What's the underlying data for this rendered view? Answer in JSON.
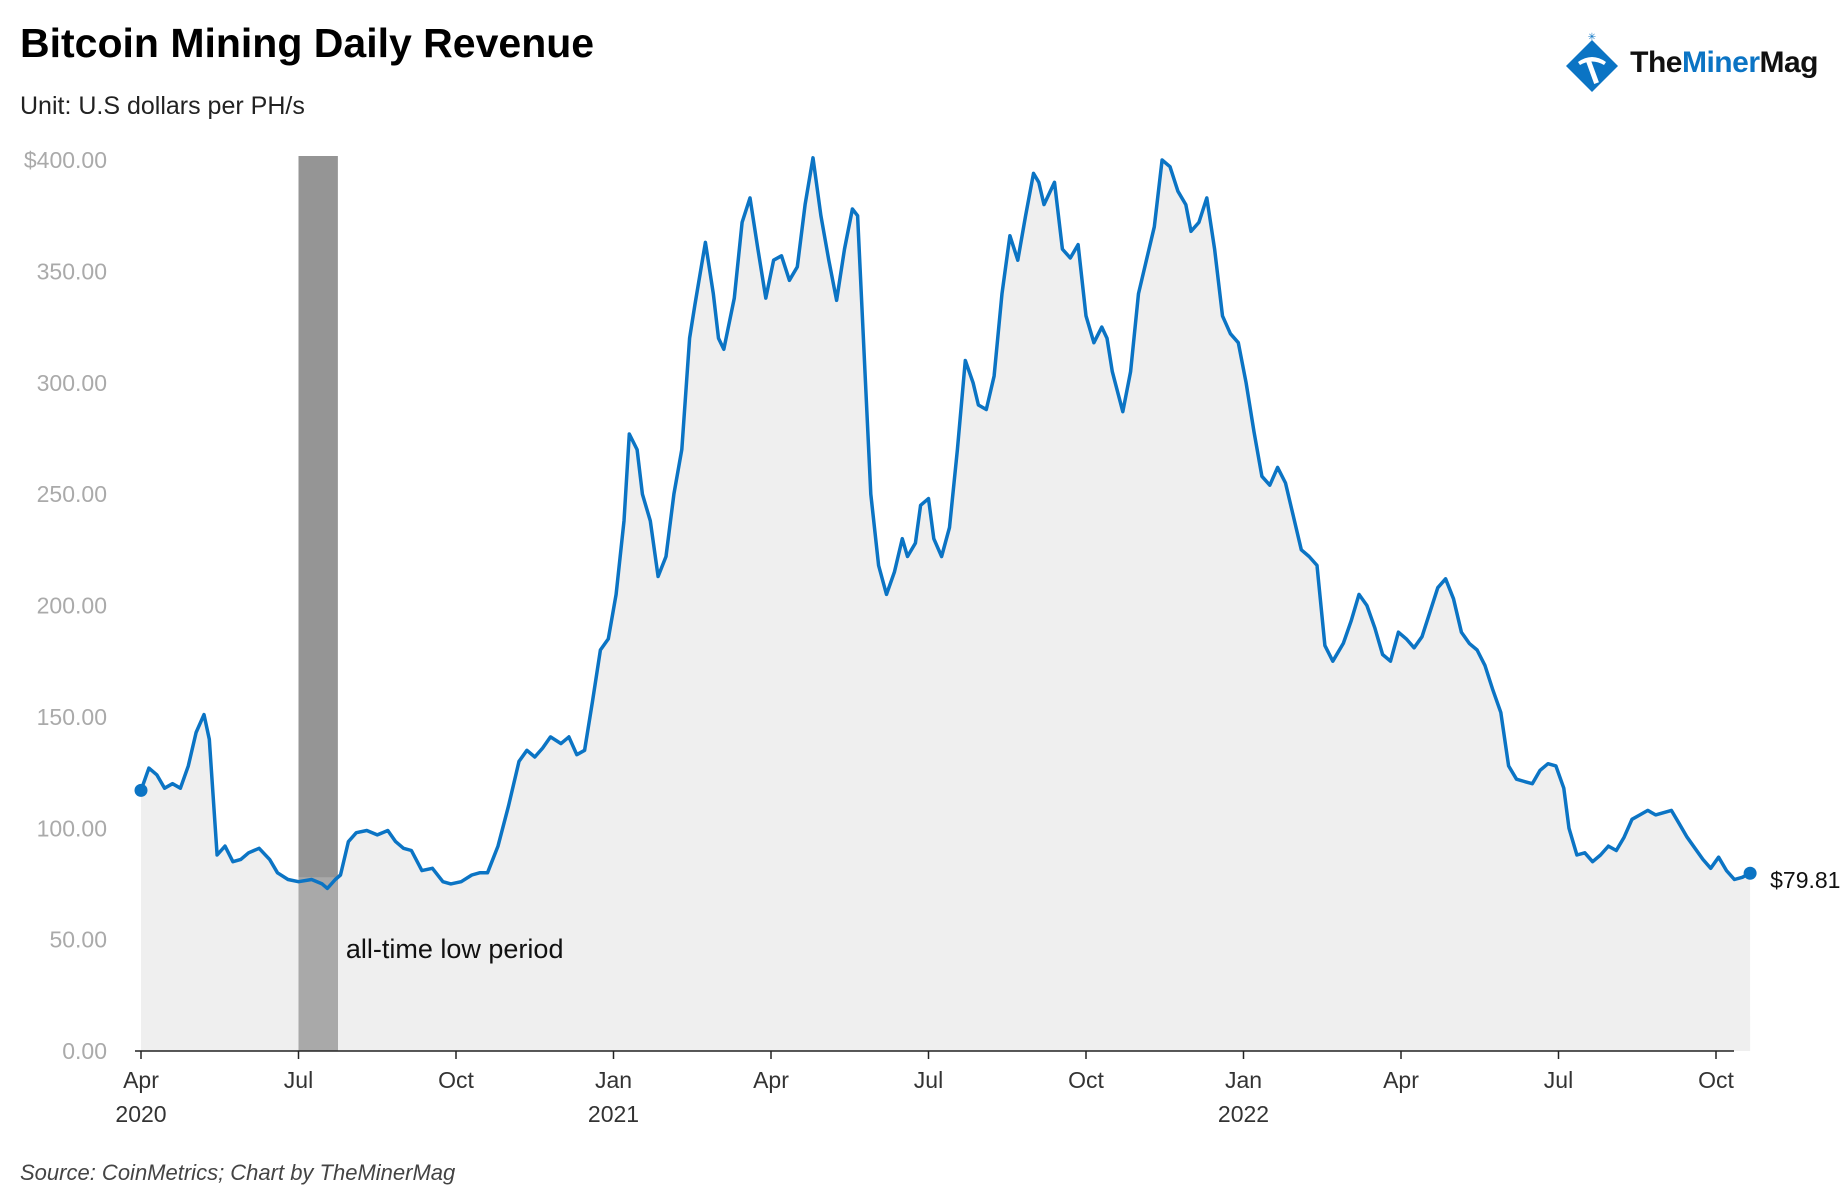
{
  "header": {
    "title": "Bitcoin Mining Daily Revenue",
    "subtitle": "Unit: U.S dollars per PH/s"
  },
  "logo": {
    "text_part1": "The",
    "text_part2": "Miner",
    "text_part3": "Mag"
  },
  "footer": {
    "source": "Source: CoinMetrics; Chart by TheMinerMag"
  },
  "colors": {
    "line": "#0b74c4",
    "area": "#efefef",
    "shade_dark": "#959595",
    "shade_light": "#a9a9a9"
  },
  "chart_data": {
    "type": "area",
    "title": "Bitcoin Mining Daily Revenue",
    "ylabel": "Unit: U.S dollars per PH/s",
    "ylim": [
      0,
      400
    ],
    "y_ticks": [
      0,
      50,
      100,
      150,
      200,
      250,
      300,
      350,
      400
    ],
    "y_tick_labels": [
      "0.00",
      "50.00",
      "100.00",
      "150.00",
      "200.00",
      "250.00",
      "300.00",
      "350.00",
      "$400.00"
    ],
    "x_ticks": [
      {
        "t": 0,
        "label": "Apr",
        "year": "2020"
      },
      {
        "t": 3,
        "label": "Jul",
        "year": ""
      },
      {
        "t": 6,
        "label": "Oct",
        "year": ""
      },
      {
        "t": 9,
        "label": "Jan",
        "year": "2021"
      },
      {
        "t": 12,
        "label": "Apr",
        "year": ""
      },
      {
        "t": 15,
        "label": "Jul",
        "year": ""
      },
      {
        "t": 18,
        "label": "Oct",
        "year": ""
      },
      {
        "t": 21,
        "label": "Jan",
        "year": "2022"
      },
      {
        "t": 24,
        "label": "Apr",
        "year": ""
      },
      {
        "t": 27,
        "label": "Jul",
        "year": ""
      },
      {
        "t": 30,
        "label": "Oct",
        "year": ""
      }
    ],
    "x_unit": "months since Apr 2020",
    "series": [
      {
        "name": "Daily revenue per PH/s",
        "points": [
          [
            0.0,
            117
          ],
          [
            0.15,
            127
          ],
          [
            0.3,
            124
          ],
          [
            0.45,
            118
          ],
          [
            0.6,
            120
          ],
          [
            0.75,
            118
          ],
          [
            0.9,
            128
          ],
          [
            1.05,
            143
          ],
          [
            1.2,
            151
          ],
          [
            1.3,
            140
          ],
          [
            1.45,
            88
          ],
          [
            1.6,
            92
          ],
          [
            1.75,
            85
          ],
          [
            1.9,
            86
          ],
          [
            2.05,
            89
          ],
          [
            2.25,
            91
          ],
          [
            2.45,
            86
          ],
          [
            2.6,
            80
          ],
          [
            2.8,
            77
          ],
          [
            3.0,
            76
          ],
          [
            3.25,
            77
          ],
          [
            3.45,
            75
          ],
          [
            3.55,
            73
          ],
          [
            3.7,
            77
          ],
          [
            3.8,
            79
          ],
          [
            3.95,
            94
          ],
          [
            4.1,
            98
          ],
          [
            4.3,
            99
          ],
          [
            4.5,
            97
          ],
          [
            4.7,
            99
          ],
          [
            4.85,
            94
          ],
          [
            5.0,
            91
          ],
          [
            5.15,
            90
          ],
          [
            5.35,
            81
          ],
          [
            5.55,
            82
          ],
          [
            5.75,
            76
          ],
          [
            5.9,
            75
          ],
          [
            6.1,
            76
          ],
          [
            6.3,
            79
          ],
          [
            6.45,
            80
          ],
          [
            6.6,
            80
          ],
          [
            6.8,
            92
          ],
          [
            7.0,
            110
          ],
          [
            7.2,
            130
          ],
          [
            7.35,
            135
          ],
          [
            7.5,
            132
          ],
          [
            7.65,
            136
          ],
          [
            7.8,
            141
          ],
          [
            8.0,
            138
          ],
          [
            8.15,
            141
          ],
          [
            8.3,
            133
          ],
          [
            8.45,
            135
          ],
          [
            8.6,
            157
          ],
          [
            8.75,
            180
          ],
          [
            8.9,
            185
          ],
          [
            9.05,
            205
          ],
          [
            9.2,
            238
          ],
          [
            9.3,
            277
          ],
          [
            9.45,
            270
          ],
          [
            9.55,
            250
          ],
          [
            9.7,
            238
          ],
          [
            9.85,
            213
          ],
          [
            10.0,
            222
          ],
          [
            10.15,
            250
          ],
          [
            10.3,
            270
          ],
          [
            10.45,
            320
          ],
          [
            10.55,
            335
          ],
          [
            10.75,
            363
          ],
          [
            10.9,
            340
          ],
          [
            11.0,
            320
          ],
          [
            11.1,
            315
          ],
          [
            11.3,
            338
          ],
          [
            11.45,
            372
          ],
          [
            11.6,
            383
          ],
          [
            11.75,
            360
          ],
          [
            11.9,
            338
          ],
          [
            12.05,
            355
          ],
          [
            12.2,
            357
          ],
          [
            12.35,
            346
          ],
          [
            12.5,
            352
          ],
          [
            12.65,
            380
          ],
          [
            12.8,
            401
          ],
          [
            12.95,
            375
          ],
          [
            13.1,
            355
          ],
          [
            13.25,
            337
          ],
          [
            13.4,
            360
          ],
          [
            13.55,
            378
          ],
          [
            13.65,
            375
          ],
          [
            13.8,
            300
          ],
          [
            13.9,
            250
          ],
          [
            14.05,
            218
          ],
          [
            14.2,
            205
          ],
          [
            14.35,
            215
          ],
          [
            14.5,
            230
          ],
          [
            14.6,
            222
          ],
          [
            14.75,
            228
          ],
          [
            14.85,
            245
          ],
          [
            15.0,
            248
          ],
          [
            15.1,
            230
          ],
          [
            15.25,
            222
          ],
          [
            15.4,
            235
          ],
          [
            15.55,
            270
          ],
          [
            15.7,
            310
          ],
          [
            15.85,
            300
          ],
          [
            15.95,
            290
          ],
          [
            16.1,
            288
          ],
          [
            16.25,
            303
          ],
          [
            16.4,
            340
          ],
          [
            16.55,
            366
          ],
          [
            16.7,
            355
          ],
          [
            16.85,
            375
          ],
          [
            17.0,
            394
          ],
          [
            17.1,
            390
          ],
          [
            17.2,
            380
          ],
          [
            17.3,
            385
          ],
          [
            17.4,
            390
          ],
          [
            17.55,
            360
          ],
          [
            17.7,
            356
          ],
          [
            17.85,
            362
          ],
          [
            18.0,
            330
          ],
          [
            18.15,
            318
          ],
          [
            18.3,
            325
          ],
          [
            18.4,
            320
          ],
          [
            18.5,
            305
          ],
          [
            18.7,
            287
          ],
          [
            18.85,
            305
          ],
          [
            19.0,
            340
          ],
          [
            19.15,
            355
          ],
          [
            19.3,
            370
          ],
          [
            19.45,
            400
          ],
          [
            19.6,
            397
          ],
          [
            19.75,
            386
          ],
          [
            19.9,
            380
          ],
          [
            20.0,
            368
          ],
          [
            20.15,
            372
          ],
          [
            20.3,
            383
          ],
          [
            20.45,
            360
          ],
          [
            20.6,
            330
          ],
          [
            20.75,
            322
          ],
          [
            20.9,
            318
          ],
          [
            21.05,
            300
          ],
          [
            21.2,
            278
          ],
          [
            21.35,
            258
          ],
          [
            21.5,
            254
          ],
          [
            21.65,
            262
          ],
          [
            21.8,
            255
          ],
          [
            21.95,
            240
          ],
          [
            22.1,
            225
          ],
          [
            22.25,
            222
          ],
          [
            22.4,
            218
          ],
          [
            22.55,
            182
          ],
          [
            22.7,
            175
          ],
          [
            22.9,
            183
          ],
          [
            23.05,
            193
          ],
          [
            23.2,
            205
          ],
          [
            23.35,
            200
          ],
          [
            23.5,
            190
          ],
          [
            23.65,
            178
          ],
          [
            23.8,
            175
          ],
          [
            23.95,
            188
          ],
          [
            24.1,
            185
          ],
          [
            24.25,
            181
          ],
          [
            24.4,
            186
          ],
          [
            24.55,
            197
          ],
          [
            24.7,
            208
          ],
          [
            24.85,
            212
          ],
          [
            25.0,
            203
          ],
          [
            25.15,
            188
          ],
          [
            25.3,
            183
          ],
          [
            25.45,
            180
          ],
          [
            25.6,
            173
          ],
          [
            25.75,
            162
          ],
          [
            25.9,
            152
          ],
          [
            26.05,
            128
          ],
          [
            26.2,
            122
          ],
          [
            26.35,
            121
          ],
          [
            26.5,
            120
          ],
          [
            26.65,
            126
          ],
          [
            26.8,
            129
          ],
          [
            26.95,
            128
          ],
          [
            27.1,
            118
          ],
          [
            27.2,
            100
          ],
          [
            27.35,
            88
          ],
          [
            27.5,
            89
          ],
          [
            27.65,
            85
          ],
          [
            27.8,
            88
          ],
          [
            27.95,
            92
          ],
          [
            28.1,
            90
          ],
          [
            28.25,
            96
          ],
          [
            28.4,
            104
          ],
          [
            28.55,
            106
          ],
          [
            28.7,
            108
          ],
          [
            28.85,
            106
          ],
          [
            29.0,
            107
          ],
          [
            29.15,
            108
          ],
          [
            29.3,
            102
          ],
          [
            29.45,
            96
          ],
          [
            29.6,
            91
          ],
          [
            29.75,
            86
          ],
          [
            29.9,
            82
          ],
          [
            30.05,
            87
          ],
          [
            30.2,
            81
          ],
          [
            30.35,
            77
          ],
          [
            30.5,
            78
          ],
          [
            30.65,
            79.81
          ]
        ],
        "start_value": 117,
        "end_value": 79.81,
        "end_label": "$79.81"
      }
    ],
    "shaded_period": {
      "t_start": 3.0,
      "t_end": 3.75,
      "label": "all-time low period"
    },
    "grid": false
  }
}
